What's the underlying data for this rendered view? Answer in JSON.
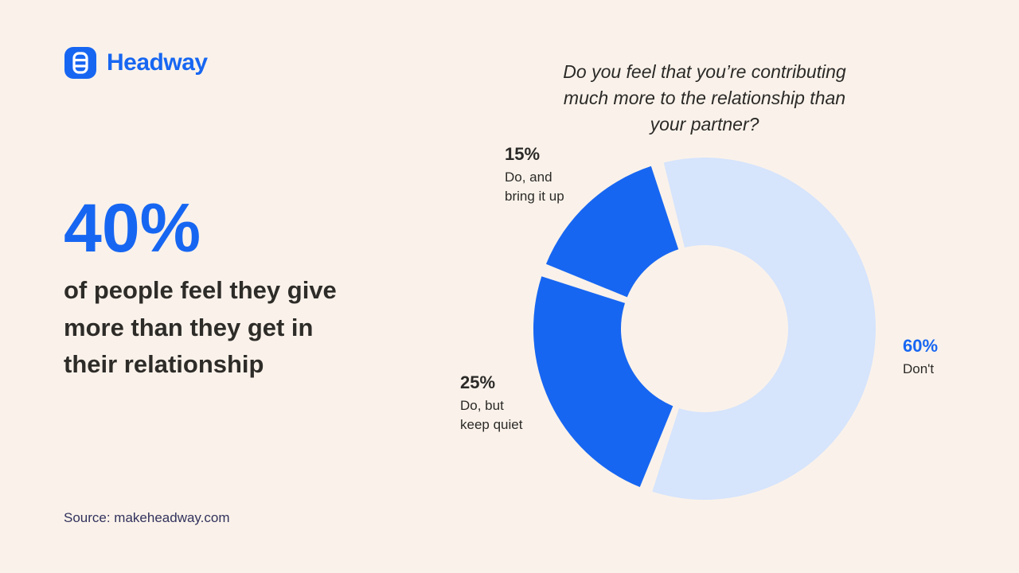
{
  "theme": {
    "background": "#faf2ea",
    "brand_blue": "#1766f2",
    "light_blue": "#d6e4fc",
    "dark_text": "#2e2c29",
    "source_navy": "#32325d"
  },
  "logo": {
    "text": "Headway",
    "icon": "ladder-icon"
  },
  "left_panel": {
    "stat": "40%",
    "headline": "of people feel they give\nmore than they get in\ntheir relationship",
    "source": "Source: makeheadway.com"
  },
  "chart_data": {
    "type": "pie",
    "donut": true,
    "title": "Do you feel that you’re contributing\nmuch more to the relationship than\nyour partner?",
    "start_angle_deg": -16,
    "pad_angle_deg": 2.2,
    "legend_position": "around-chart",
    "slices": [
      {
        "label": "Don't",
        "pct_label": "60%",
        "value": 60,
        "color": "#d6e4fc"
      },
      {
        "label": "Do, but keep quiet",
        "label_wrapped": "Do, but\nkeep quiet",
        "pct_label": "25%",
        "value": 25,
        "color": "#1766f2"
      },
      {
        "label": "Do, and bring it up",
        "label_wrapped": "Do, and\nbring it up",
        "pct_label": "15%",
        "value": 15,
        "color": "#1766f2"
      }
    ]
  }
}
